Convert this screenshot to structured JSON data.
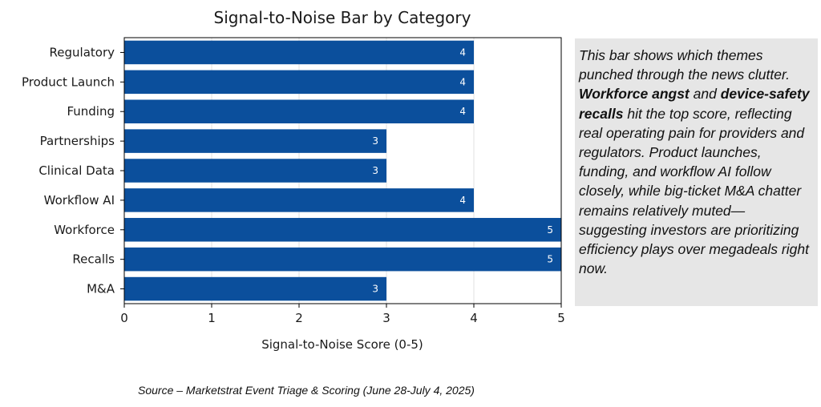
{
  "chart_data": {
    "type": "bar",
    "orientation": "horizontal",
    "title": "Signal-to-Noise Bar by Category",
    "xlabel": "Signal-to-Noise Score (0-5)",
    "ylabel": "",
    "categories": [
      "Regulatory",
      "Product Launch",
      "Funding",
      "Partnerships",
      "Clinical Data",
      "Workflow AI",
      "Workforce",
      "Recalls",
      "M&A"
    ],
    "values": [
      4,
      4,
      4,
      3,
      3,
      4,
      5,
      5,
      3
    ],
    "xlim": [
      0,
      5
    ],
    "xticks": [
      "0",
      "1",
      "2",
      "3",
      "4",
      "5"
    ],
    "grid": "vertical",
    "bar_color": "#0b4f9c"
  },
  "commentary": {
    "intro": "This bar shows which themes punched through the news clutter. ",
    "highlight_1": "Workforce angst",
    "connector": " and ",
    "highlight_2": "device-safety recalls",
    "rest": " hit the top score, reflecting real operating pain for providers and regulators. Product launches, funding, and workflow AI follow closely, while big-ticket M&A chatter remains relatively muted—suggesting investors are prioritizing efficiency plays over megadeals right now."
  },
  "source": "Source – Marketstrat Event Triage & Scoring (June 28-July 4, 2025)"
}
